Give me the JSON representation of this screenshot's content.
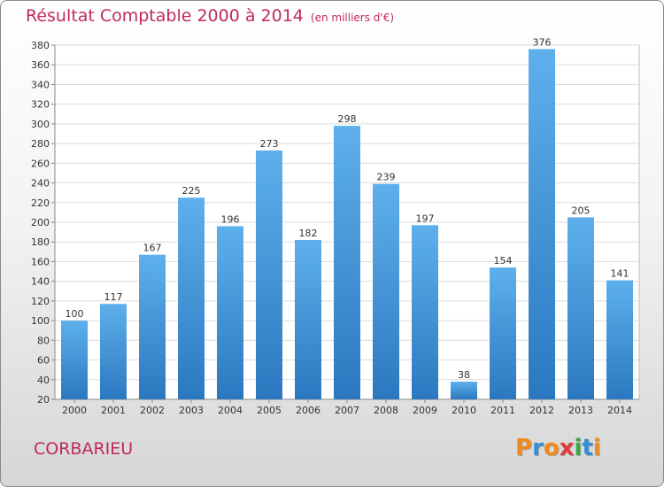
{
  "header": {
    "title": "Résultat Comptable 2000 à 2014",
    "unit": "(en milliers d'€)"
  },
  "footer": {
    "commune": "CORBARIEU",
    "logo": [
      "P",
      "r",
      "o",
      "x",
      "i",
      "t",
      "i"
    ]
  },
  "colors": {
    "title": "#c0295e",
    "bar_top": "#5eb0ec",
    "bar_bottom": "#2b78c0",
    "logo": [
      "#f08a1c",
      "#2f8fd8",
      "#f08a1c",
      "#e23b3b",
      "#3aa84a",
      "#2f8fd8",
      "#f08a1c"
    ]
  },
  "chart_data": {
    "type": "bar",
    "categories": [
      "2000",
      "2001",
      "2002",
      "2003",
      "2004",
      "2005",
      "2006",
      "2007",
      "2008",
      "2009",
      "2010",
      "2011",
      "2012",
      "2013",
      "2014"
    ],
    "values": [
      100,
      117,
      167,
      225,
      196,
      273,
      182,
      298,
      239,
      197,
      38,
      154,
      376,
      205,
      141
    ],
    "ylim": [
      20,
      380
    ],
    "yticks": [
      20,
      40,
      60,
      80,
      100,
      120,
      140,
      160,
      180,
      200,
      220,
      240,
      260,
      280,
      300,
      320,
      340,
      360,
      380
    ],
    "grid": true,
    "legend": "none"
  }
}
